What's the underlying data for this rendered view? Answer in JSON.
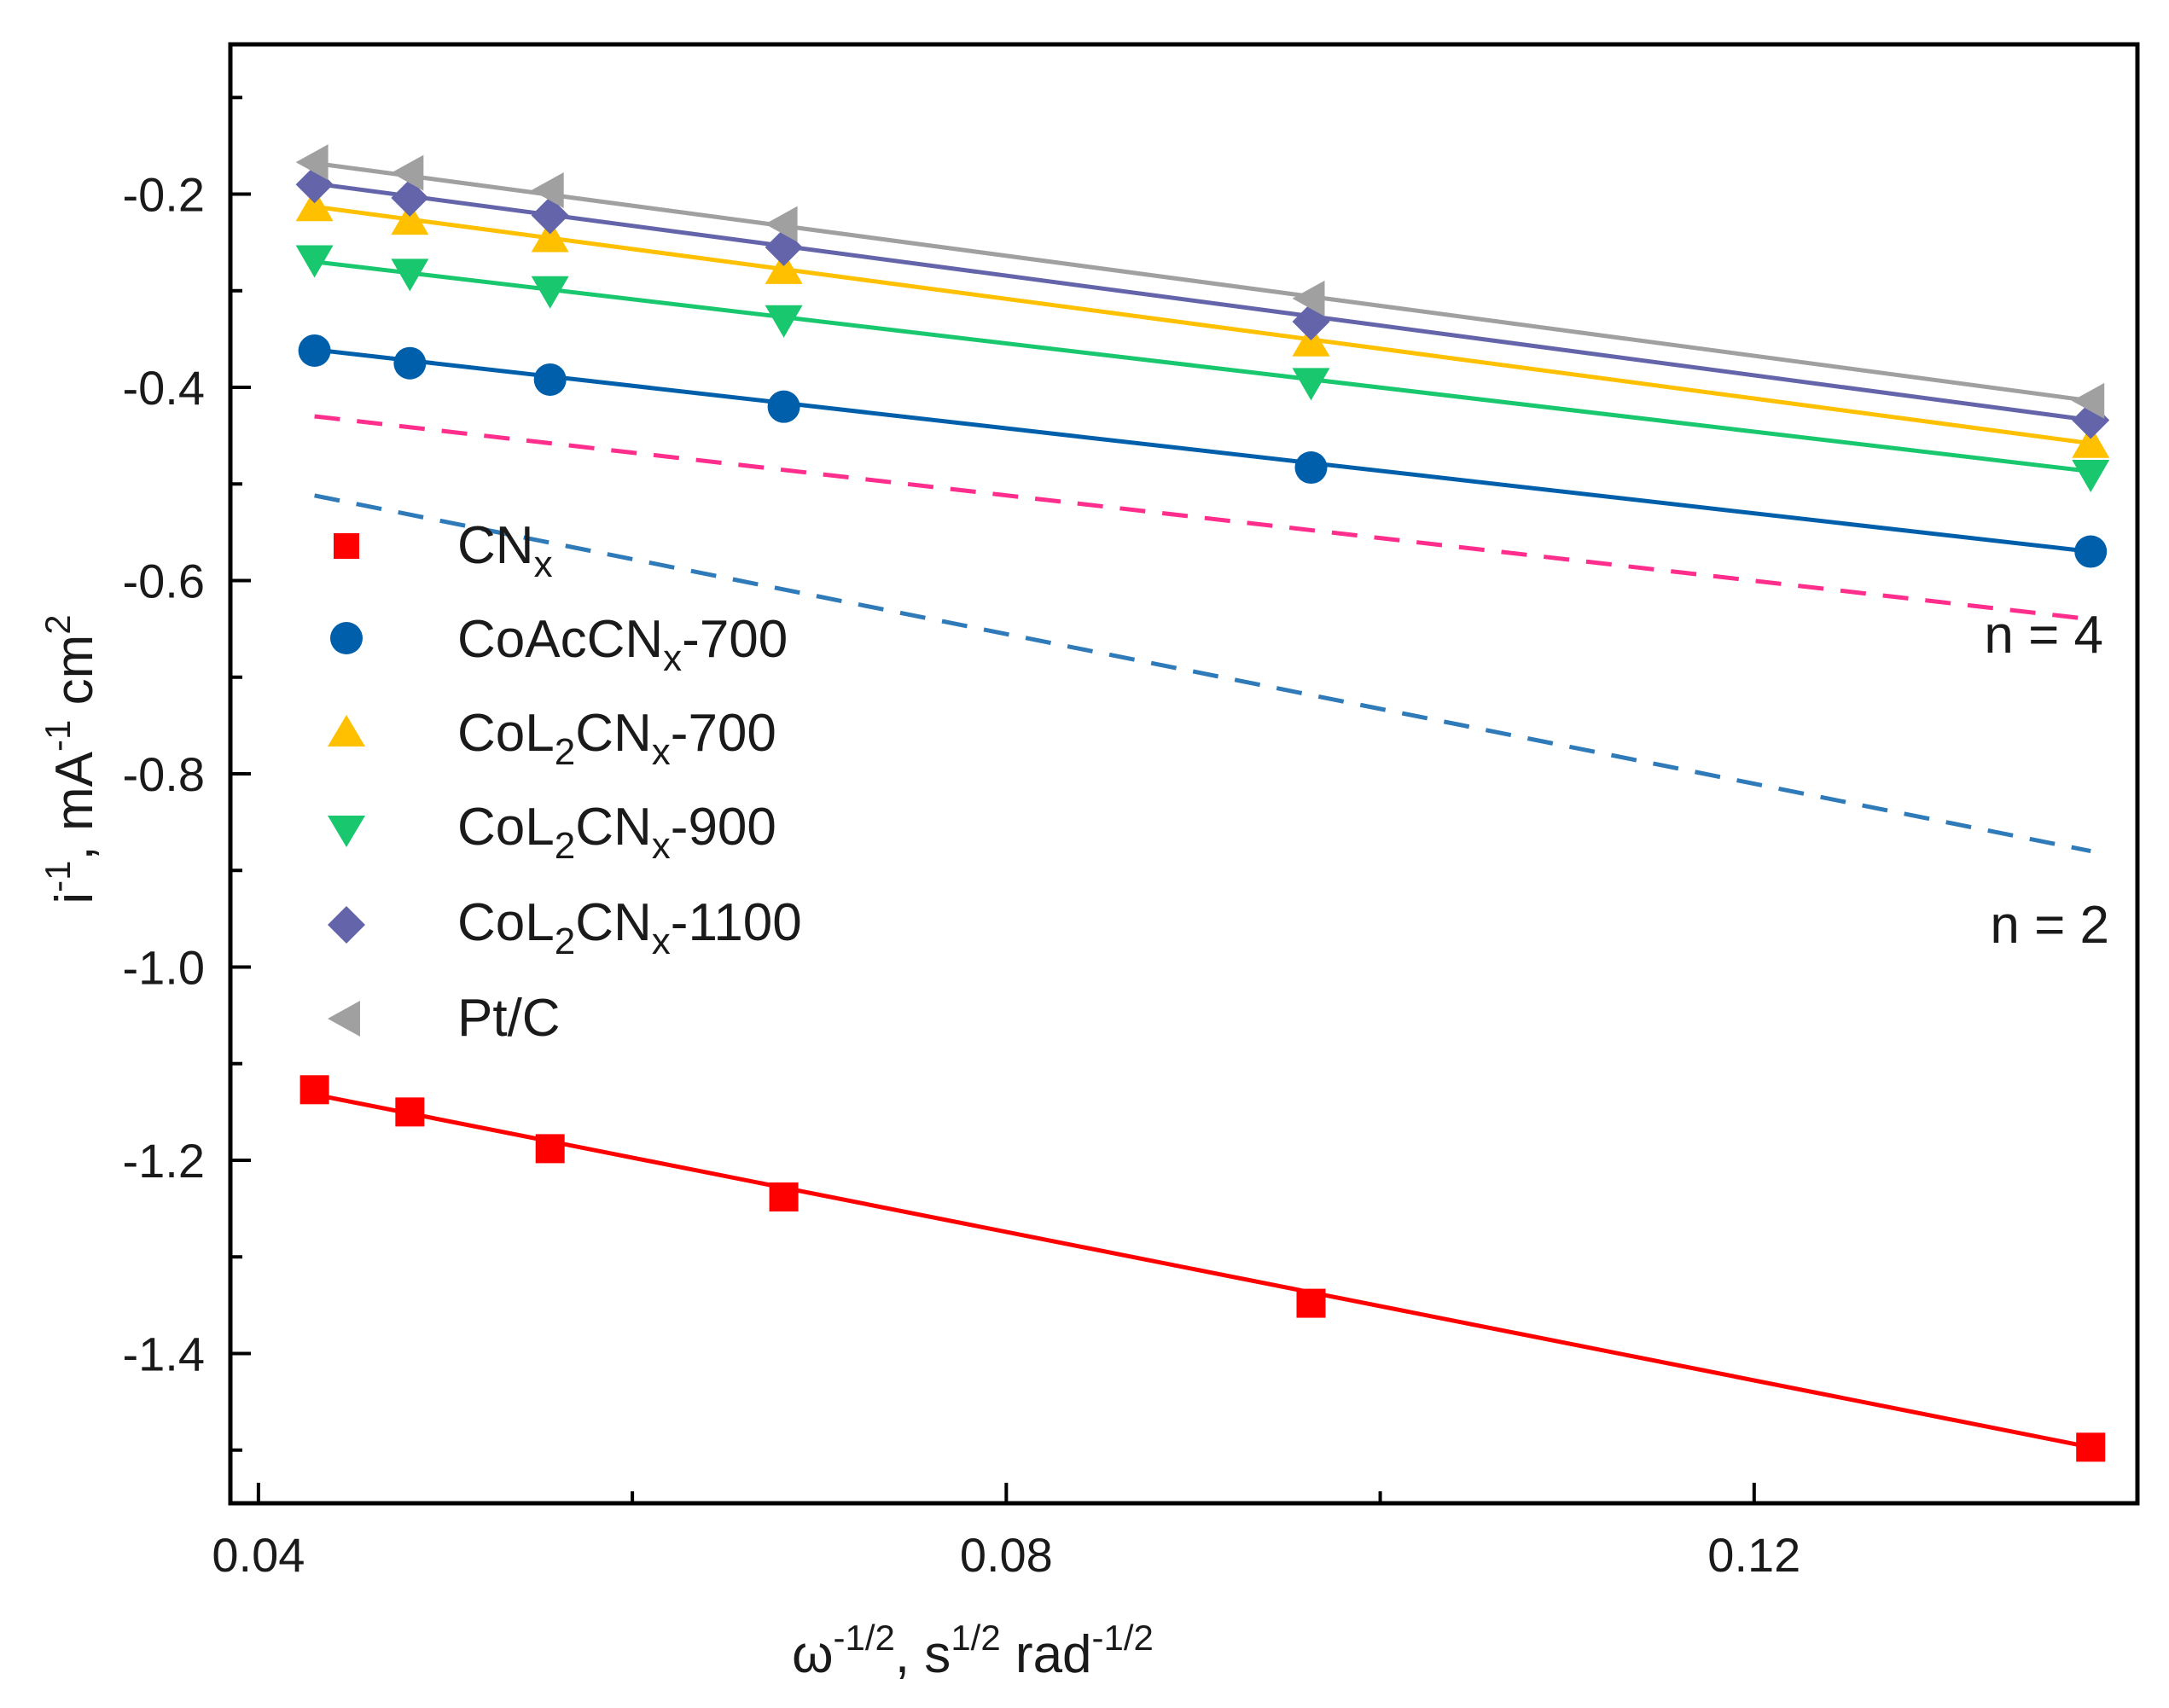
{
  "chart_data": {
    "type": "scatter",
    "title": "",
    "xlabel": {
      "base": "ω",
      "base_sup": "-1/2",
      "mid": ", s",
      "mid_sup": "1/2",
      "tail": " rad",
      "tail_sup": "-1/2"
    },
    "ylabel": {
      "base": "i",
      "base_sup": "-1",
      "mid": ", mA",
      "mid_sup": "-1",
      "tail": " cm",
      "tail_sup": "2"
    },
    "xlim": [
      0.0385,
      0.1405
    ],
    "ylim": [
      -1.555,
      -0.045
    ],
    "xticks": [
      {
        "value": 0.04,
        "label": "0.04"
      },
      {
        "value": 0.08,
        "label": "0.08"
      },
      {
        "value": 0.12,
        "label": "0.12"
      }
    ],
    "xminor": [
      0.06,
      0.1
    ],
    "yticks": [
      {
        "value": -0.2,
        "label": "-0.2"
      },
      {
        "value": -0.4,
        "label": "-0.4"
      },
      {
        "value": -0.6,
        "label": "-0.6"
      },
      {
        "value": -0.8,
        "label": "-0.8"
      },
      {
        "value": -1.0,
        "label": "-1.0"
      },
      {
        "value": -1.2,
        "label": "-1.2"
      },
      {
        "value": -1.4,
        "label": "-1.4"
      }
    ],
    "yminor": [
      -0.1,
      -0.3,
      -0.5,
      -0.7,
      -0.9,
      -1.1,
      -1.3,
      -1.5
    ],
    "x": [
      0.043,
      0.0481,
      0.0556,
      0.0681,
      0.0963,
      0.138
    ],
    "series": [
      {
        "name": "CNx",
        "label_main": "CN",
        "label_sub": "x",
        "label_tail": "",
        "marker": "square",
        "color": "#ff0000",
        "values": [
          -1.127,
          -1.15,
          -1.188,
          -1.238,
          -1.348,
          -1.497
        ],
        "fit": [
          -1.132,
          -1.497
        ]
      },
      {
        "name": "CoAcCNx-700",
        "label_main": "CoAcCN",
        "label_sub": "x",
        "label_tail": "-700",
        "marker": "circle",
        "color": "#005faa",
        "values": [
          -0.362,
          -0.375,
          -0.392,
          -0.42,
          -0.483,
          -0.57
        ],
        "fit": [
          -0.361,
          -0.57
        ]
      },
      {
        "name": "CoL2CNx-700",
        "label_main": "CoL",
        "label_sub": "2",
        "label_main2": "CN",
        "label_sub2": "x",
        "label_tail": "-700",
        "marker": "triangle-up",
        "color": "#ffc000",
        "values": [
          -0.213,
          -0.227,
          -0.245,
          -0.278,
          -0.353,
          -0.458
        ],
        "fit": [
          -0.213,
          -0.458
        ]
      },
      {
        "name": "CoL2CNx-900",
        "label_main": "CoL",
        "label_sub": "2",
        "label_main2": "CN",
        "label_sub2": "x",
        "label_tail": "-900",
        "marker": "triangle-down",
        "color": "#19c86e",
        "values": [
          -0.268,
          -0.282,
          -0.3,
          -0.33,
          -0.395,
          -0.49
        ],
        "fit": [
          -0.27,
          -0.487
        ]
      },
      {
        "name": "CoL2CNx-1100",
        "label_main": "CoL",
        "label_sub": "2",
        "label_main2": "CN",
        "label_sub2": "x",
        "label_tail": "-1100",
        "marker": "diamond",
        "color": "#6464aa",
        "values": [
          -0.19,
          -0.204,
          -0.222,
          -0.255,
          -0.332,
          -0.434
        ],
        "fit": [
          -0.189,
          -0.434
        ]
      },
      {
        "name": "Pt/C",
        "label_main": "Pt/C",
        "label_sub": "",
        "label_tail": "",
        "marker": "triangle-left",
        "color": "#a0a0a0",
        "values": [
          -0.167,
          -0.178,
          -0.196,
          -0.231,
          -0.308,
          -0.414
        ],
        "fit": [
          -0.168,
          -0.414
        ]
      }
    ],
    "reference_lines": [
      {
        "name": "n = 4",
        "label": "n = 4",
        "color": "#ff2d8c",
        "x": [
          0.043,
          0.138
        ],
        "y": [
          -0.43,
          -0.64
        ]
      },
      {
        "name": "n = 2",
        "label": "n = 2",
        "color": "#2f7ab8",
        "x": [
          0.043,
          0.138
        ],
        "y": [
          -0.512,
          -0.88
        ]
      }
    ],
    "legend_position": "left-middle"
  }
}
